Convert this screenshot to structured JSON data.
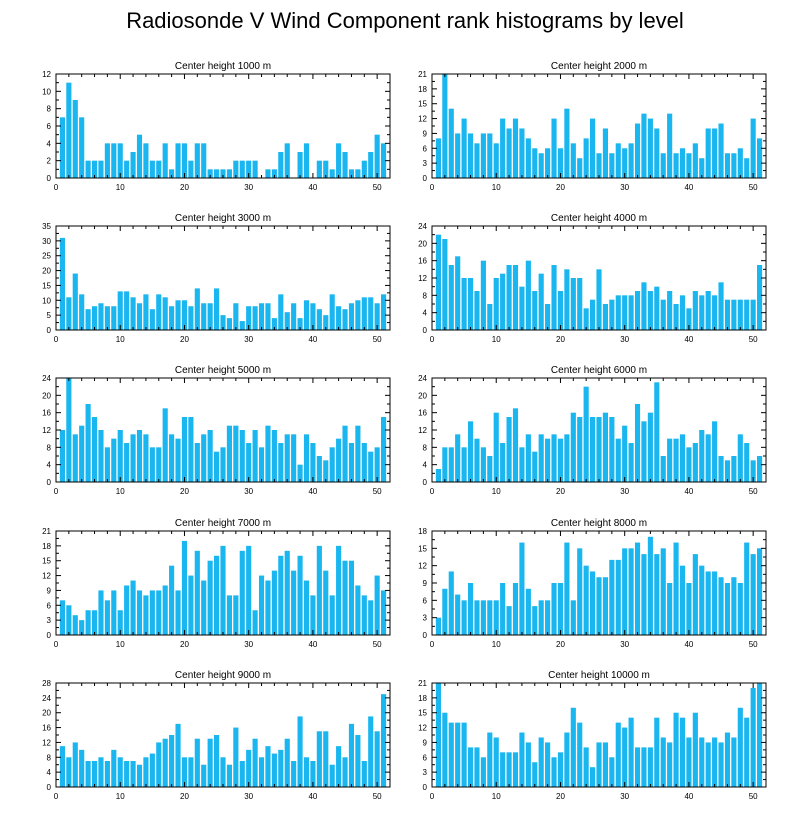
{
  "title": "Radiosonde V Wind Component rank histograms by level",
  "chart_data": [
    {
      "type": "bar",
      "title": "Center height 1000 m",
      "xlim": [
        0,
        52
      ],
      "ylim": [
        0,
        12
      ],
      "xticks": [
        0,
        10,
        20,
        30,
        40,
        50
      ],
      "yticks": [
        0,
        2,
        4,
        6,
        8,
        10,
        12
      ],
      "x": [
        1,
        2,
        3,
        4,
        5,
        6,
        7,
        8,
        9,
        10,
        11,
        12,
        13,
        14,
        15,
        16,
        17,
        18,
        19,
        20,
        21,
        22,
        23,
        24,
        25,
        26,
        27,
        28,
        29,
        30,
        31,
        32,
        33,
        34,
        35,
        36,
        37,
        38,
        39,
        40,
        41,
        42,
        43,
        44,
        45,
        46,
        47,
        48,
        49,
        50,
        51
      ],
      "values": [
        7,
        11,
        9,
        7,
        2,
        2,
        2,
        4,
        4,
        4,
        2,
        3,
        5,
        4,
        2,
        2,
        4,
        1,
        4,
        4,
        2,
        4,
        4,
        1,
        1,
        1,
        1,
        2,
        2,
        2,
        2,
        0,
        1,
        1,
        3,
        4,
        0,
        3,
        4,
        0,
        2,
        2,
        1,
        4,
        3,
        1,
        1,
        2,
        3,
        5,
        4
      ]
    },
    {
      "type": "bar",
      "title": "Center height 2000 m",
      "xlim": [
        0,
        52
      ],
      "ylim": [
        0,
        21
      ],
      "xticks": [
        0,
        10,
        20,
        30,
        40,
        50
      ],
      "yticks": [
        0,
        3,
        6,
        9,
        12,
        15,
        18,
        21
      ],
      "x": [
        1,
        2,
        3,
        4,
        5,
        6,
        7,
        8,
        9,
        10,
        11,
        12,
        13,
        14,
        15,
        16,
        17,
        18,
        19,
        20,
        21,
        22,
        23,
        24,
        25,
        26,
        27,
        28,
        29,
        30,
        31,
        32,
        33,
        34,
        35,
        36,
        37,
        38,
        39,
        40,
        41,
        42,
        43,
        44,
        45,
        46,
        47,
        48,
        49,
        50,
        51
      ],
      "values": [
        8,
        21,
        14,
        9,
        12,
        9,
        7,
        9,
        9,
        7,
        12,
        10,
        12,
        10,
        8,
        6,
        5,
        6,
        12,
        6,
        14,
        7,
        4,
        8,
        12,
        5,
        10,
        5,
        7,
        6,
        7,
        11,
        13,
        12,
        10,
        5,
        13,
        5,
        6,
        5,
        7,
        4,
        10,
        10,
        11,
        5,
        5,
        6,
        4,
        12,
        8
      ]
    },
    {
      "type": "bar",
      "title": "Center height 3000 m",
      "xlim": [
        0,
        52
      ],
      "ylim": [
        0,
        35
      ],
      "xticks": [
        0,
        10,
        20,
        30,
        40,
        50
      ],
      "yticks": [
        0,
        5,
        10,
        15,
        20,
        25,
        30,
        35
      ],
      "x": [
        1,
        2,
        3,
        4,
        5,
        6,
        7,
        8,
        9,
        10,
        11,
        12,
        13,
        14,
        15,
        16,
        17,
        18,
        19,
        20,
        21,
        22,
        23,
        24,
        25,
        26,
        27,
        28,
        29,
        30,
        31,
        32,
        33,
        34,
        35,
        36,
        37,
        38,
        39,
        40,
        41,
        42,
        43,
        44,
        45,
        46,
        47,
        48,
        49,
        50,
        51
      ],
      "values": [
        31,
        11,
        19,
        12,
        7,
        8,
        9,
        8,
        8,
        13,
        13,
        11,
        9,
        12,
        7,
        12,
        11,
        8,
        10,
        10,
        8,
        14,
        9,
        9,
        14,
        5,
        4,
        9,
        3,
        8,
        8,
        9,
        9,
        4,
        12,
        6,
        9,
        4,
        10,
        9,
        7,
        5,
        12,
        8,
        7,
        9,
        10,
        11,
        11,
        9,
        12
      ]
    },
    {
      "type": "bar",
      "title": "Center height 4000 m",
      "xlim": [
        0,
        52
      ],
      "ylim": [
        0,
        24
      ],
      "xticks": [
        0,
        10,
        20,
        30,
        40,
        50
      ],
      "yticks": [
        0,
        4,
        8,
        12,
        16,
        20,
        24
      ],
      "x": [
        1,
        2,
        3,
        4,
        5,
        6,
        7,
        8,
        9,
        10,
        11,
        12,
        13,
        14,
        15,
        16,
        17,
        18,
        19,
        20,
        21,
        22,
        23,
        24,
        25,
        26,
        27,
        28,
        29,
        30,
        31,
        32,
        33,
        34,
        35,
        36,
        37,
        38,
        39,
        40,
        41,
        42,
        43,
        44,
        45,
        46,
        47,
        48,
        49,
        50,
        51
      ],
      "values": [
        22,
        21,
        15,
        17,
        12,
        12,
        9,
        16,
        6,
        12,
        13,
        15,
        15,
        10,
        16,
        9,
        13,
        6,
        15,
        9,
        14,
        12,
        12,
        5,
        7,
        14,
        6,
        7,
        8,
        8,
        8,
        9,
        11,
        9,
        10,
        7,
        9,
        6,
        8,
        5,
        9,
        8,
        9,
        8,
        11,
        7,
        7,
        7,
        7,
        7,
        15
      ]
    },
    {
      "type": "bar",
      "title": "Center height 5000 m",
      "xlim": [
        0,
        52
      ],
      "ylim": [
        0,
        24
      ],
      "xticks": [
        0,
        10,
        20,
        30,
        40,
        50
      ],
      "yticks": [
        0,
        4,
        8,
        12,
        16,
        20,
        24
      ],
      "x": [
        1,
        2,
        3,
        4,
        5,
        6,
        7,
        8,
        9,
        10,
        11,
        12,
        13,
        14,
        15,
        16,
        17,
        18,
        19,
        20,
        21,
        22,
        23,
        24,
        25,
        26,
        27,
        28,
        29,
        30,
        31,
        32,
        33,
        34,
        35,
        36,
        37,
        38,
        39,
        40,
        41,
        42,
        43,
        44,
        45,
        46,
        47,
        48,
        49,
        50,
        51
      ],
      "values": [
        12,
        24,
        11,
        13,
        18,
        15,
        12,
        8,
        10,
        12,
        9,
        11,
        12,
        11,
        8,
        8,
        17,
        11,
        10,
        15,
        15,
        9,
        11,
        12,
        7,
        8,
        13,
        13,
        12,
        9,
        12,
        8,
        13,
        12,
        9,
        11,
        11,
        4,
        11,
        9,
        6,
        5,
        8,
        10,
        13,
        9,
        13,
        9,
        7,
        8,
        15
      ]
    },
    {
      "type": "bar",
      "title": "Center height 6000 m",
      "xlim": [
        0,
        52
      ],
      "ylim": [
        0,
        24
      ],
      "xticks": [
        0,
        10,
        20,
        30,
        40,
        50
      ],
      "yticks": [
        0,
        4,
        8,
        12,
        16,
        20,
        24
      ],
      "x": [
        1,
        2,
        3,
        4,
        5,
        6,
        7,
        8,
        9,
        10,
        11,
        12,
        13,
        14,
        15,
        16,
        17,
        18,
        19,
        20,
        21,
        22,
        23,
        24,
        25,
        26,
        27,
        28,
        29,
        30,
        31,
        32,
        33,
        34,
        35,
        36,
        37,
        38,
        39,
        40,
        41,
        42,
        43,
        44,
        45,
        46,
        47,
        48,
        49,
        50,
        51
      ],
      "values": [
        3,
        8,
        8,
        11,
        8,
        14,
        10,
        8,
        6,
        16,
        9,
        15,
        17,
        8,
        11,
        7,
        11,
        10,
        11,
        10,
        11,
        16,
        15,
        22,
        15,
        15,
        16,
        15,
        10,
        13,
        9,
        18,
        14,
        16,
        23,
        6,
        10,
        10,
        11,
        8,
        9,
        12,
        11,
        14,
        6,
        5,
        6,
        11,
        9,
        5,
        6
      ]
    },
    {
      "type": "bar",
      "title": "Center height 7000 m",
      "xlim": [
        0,
        52
      ],
      "ylim": [
        0,
        21
      ],
      "xticks": [
        0,
        10,
        20,
        30,
        40,
        50
      ],
      "yticks": [
        0,
        3,
        6,
        9,
        12,
        15,
        18,
        21
      ],
      "x": [
        1,
        2,
        3,
        4,
        5,
        6,
        7,
        8,
        9,
        10,
        11,
        12,
        13,
        14,
        15,
        16,
        17,
        18,
        19,
        20,
        21,
        22,
        23,
        24,
        25,
        26,
        27,
        28,
        29,
        30,
        31,
        32,
        33,
        34,
        35,
        36,
        37,
        38,
        39,
        40,
        41,
        42,
        43,
        44,
        45,
        46,
        47,
        48,
        49,
        50,
        51
      ],
      "values": [
        7,
        6,
        4,
        3,
        5,
        5,
        9,
        7,
        9,
        5,
        10,
        11,
        9,
        8,
        9,
        9,
        10,
        14,
        9,
        19,
        12,
        17,
        11,
        15,
        16,
        18,
        8,
        8,
        17,
        18,
        5,
        12,
        11,
        13,
        16,
        17,
        13,
        16,
        11,
        8,
        18,
        13,
        8,
        18,
        15,
        15,
        10,
        8,
        7,
        12,
        9
      ]
    },
    {
      "type": "bar",
      "title": "Center height 8000 m",
      "xlim": [
        0,
        52
      ],
      "ylim": [
        0,
        18
      ],
      "xticks": [
        0,
        10,
        20,
        30,
        40,
        50
      ],
      "yticks": [
        0,
        3,
        6,
        9,
        12,
        15,
        18
      ],
      "x": [
        1,
        2,
        3,
        4,
        5,
        6,
        7,
        8,
        9,
        10,
        11,
        12,
        13,
        14,
        15,
        16,
        17,
        18,
        19,
        20,
        21,
        22,
        23,
        24,
        25,
        26,
        27,
        28,
        29,
        30,
        31,
        32,
        33,
        34,
        35,
        36,
        37,
        38,
        39,
        40,
        41,
        42,
        43,
        44,
        45,
        46,
        47,
        48,
        49,
        50,
        51
      ],
      "values": [
        3,
        8,
        11,
        7,
        6,
        9,
        6,
        6,
        6,
        6,
        9,
        5,
        9,
        16,
        8,
        5,
        6,
        6,
        9,
        9,
        16,
        6,
        15,
        12,
        11,
        10,
        10,
        13,
        13,
        15,
        15,
        16,
        14,
        17,
        14,
        15,
        9,
        16,
        12,
        9,
        14,
        12,
        11,
        11,
        10,
        9,
        10,
        9,
        16,
        14,
        15
      ]
    },
    {
      "type": "bar",
      "title": "Center height 9000 m",
      "xlim": [
        0,
        52
      ],
      "ylim": [
        0,
        28
      ],
      "xticks": [
        0,
        10,
        20,
        30,
        40,
        50
      ],
      "yticks": [
        0,
        4,
        8,
        12,
        16,
        20,
        24,
        28
      ],
      "x": [
        1,
        2,
        3,
        4,
        5,
        6,
        7,
        8,
        9,
        10,
        11,
        12,
        13,
        14,
        15,
        16,
        17,
        18,
        19,
        20,
        21,
        22,
        23,
        24,
        25,
        26,
        27,
        28,
        29,
        30,
        31,
        32,
        33,
        34,
        35,
        36,
        37,
        38,
        39,
        40,
        41,
        42,
        43,
        44,
        45,
        46,
        47,
        48,
        49,
        50,
        51
      ],
      "values": [
        11,
        8,
        12,
        10,
        7,
        7,
        8,
        7,
        10,
        8,
        7,
        7,
        6,
        8,
        9,
        12,
        13,
        14,
        17,
        8,
        8,
        13,
        6,
        13,
        14,
        8,
        6,
        16,
        7,
        10,
        13,
        8,
        11,
        9,
        10,
        13,
        7,
        19,
        8,
        7,
        15,
        15,
        6,
        11,
        8,
        17,
        14,
        7,
        19,
        15,
        25
      ]
    },
    {
      "type": "bar",
      "title": "Center height 10000 m",
      "xlim": [
        0,
        52
      ],
      "ylim": [
        0,
        21
      ],
      "xticks": [
        0,
        10,
        20,
        30,
        40,
        50
      ],
      "yticks": [
        0,
        3,
        6,
        9,
        12,
        15,
        18,
        21
      ],
      "x": [
        1,
        2,
        3,
        4,
        5,
        6,
        7,
        8,
        9,
        10,
        11,
        12,
        13,
        14,
        15,
        16,
        17,
        18,
        19,
        20,
        21,
        22,
        23,
        24,
        25,
        26,
        27,
        28,
        29,
        30,
        31,
        32,
        33,
        34,
        35,
        36,
        37,
        38,
        39,
        40,
        41,
        42,
        43,
        44,
        45,
        46,
        47,
        48,
        49,
        50,
        51
      ],
      "values": [
        21,
        15,
        13,
        13,
        13,
        8,
        8,
        6,
        11,
        10,
        7,
        7,
        7,
        11,
        9,
        5,
        10,
        9,
        6,
        7,
        11,
        16,
        13,
        8,
        4,
        9,
        9,
        6,
        13,
        12,
        14,
        8,
        8,
        8,
        14,
        10,
        9,
        15,
        14,
        10,
        15,
        10,
        9,
        10,
        9,
        11,
        10,
        16,
        14,
        20,
        21
      ]
    }
  ]
}
